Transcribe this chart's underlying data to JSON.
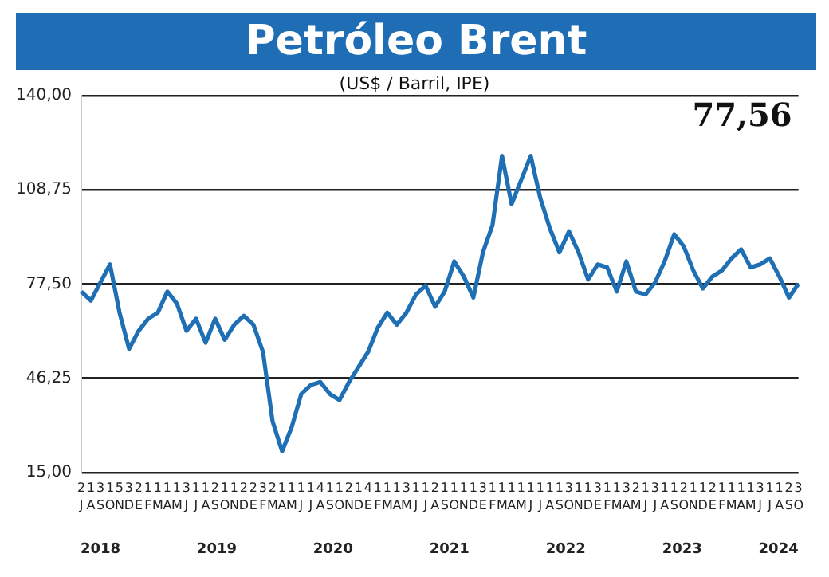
{
  "chart_data": {
    "type": "line",
    "title": "Petróleo Brent",
    "subtitle": "(US$ / Barril, IPE)",
    "annotations": [
      "77,56",
      "2131532111131121122321111411214111311211113111111113113113213112112111131123",
      "2018",
      "2019",
      "2020",
      "2021",
      "2022",
      "2023",
      "2024"
    ],
    "categories": [
      "J",
      "A",
      "S",
      "O",
      "N",
      "D",
      "E",
      "F",
      "M",
      "A",
      "M",
      "J",
      "J",
      "A",
      "S",
      "O",
      "N",
      "D",
      "E",
      "F",
      "M",
      "A",
      "M",
      "J",
      "J",
      "A",
      "S",
      "O",
      "N",
      "D",
      "E",
      "F",
      "M",
      "A",
      "M",
      "J",
      "J",
      "A",
      "S",
      "O",
      "N",
      "D",
      "E",
      "F",
      "M",
      "A",
      "M",
      "J",
      "J",
      "A",
      "S",
      "O",
      "N",
      "D",
      "E",
      "F",
      "M",
      "A",
      "M",
      "J",
      "J",
      "A",
      "S",
      "O",
      "N",
      "D",
      "E",
      "F",
      "M",
      "A",
      "M",
      "J",
      "J",
      "A",
      "S",
      "O"
    ],
    "series": [
      {
        "color": "#1f6fb4",
        "values": [
          75,
          72,
          78,
          84,
          68,
          56,
          62,
          66,
          68,
          75,
          71,
          62,
          66,
          58,
          66,
          59,
          64,
          67,
          64,
          55,
          32,
          22,
          30,
          41,
          44,
          45,
          41,
          39,
          45,
          50,
          55,
          63,
          68,
          64,
          68,
          74,
          77,
          70,
          75,
          85,
          80,
          73,
          88,
          97,
          120,
          104,
          112,
          120,
          106,
          96,
          88,
          95,
          88,
          79,
          84,
          83,
          75,
          85,
          75,
          74,
          78,
          85,
          94,
          90,
          82,
          76,
          80,
          82,
          86,
          89,
          83,
          84,
          86,
          80,
          73,
          77.6
        ]
      }
    ],
    "ylim": [
      15,
      140
    ],
    "yticks": [
      {
        "value": 15,
        "label": "15,00"
      },
      {
        "value": 46.25,
        "label": "46,25"
      },
      {
        "value": 77.5,
        "label": "77,50"
      },
      {
        "value": 108.75,
        "label": "108,75"
      },
      {
        "value": 140,
        "label": "140,00"
      }
    ],
    "grid": "y",
    "legend": false,
    "marker": "none",
    "line_style": "solid"
  }
}
